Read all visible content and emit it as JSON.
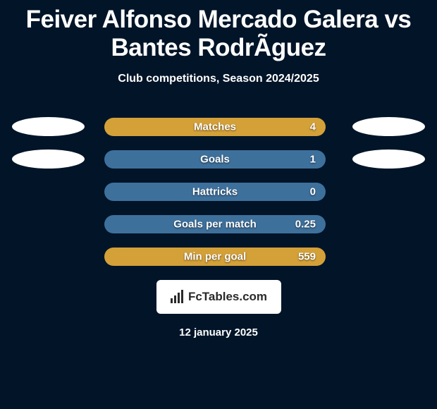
{
  "title": "Feiver Alfonso Mercado Galera vs Bantes RodrÃ­guez",
  "title_fontsize": 35,
  "title_color": "#ffffff",
  "subtitle": "Club competitions, Season 2024/2025",
  "subtitle_fontsize": 16,
  "subtitle_color": "#ffffff",
  "background_color": "#011428",
  "ellipse_left_color": "#ffffff",
  "ellipse_right_color": "#ffffff",
  "bar_fill_full": "#d4a038",
  "bar_fill_partial": "#3e709c",
  "bar_label_fontsize": 15,
  "bar_value_fontsize": 15,
  "stats": [
    {
      "label": "Matches",
      "value": "4",
      "show_ellipses": true,
      "full_fill": true
    },
    {
      "label": "Goals",
      "value": "1",
      "show_ellipses": true,
      "full_fill": false
    },
    {
      "label": "Hattricks",
      "value": "0",
      "show_ellipses": false,
      "full_fill": false
    },
    {
      "label": "Goals per match",
      "value": "0.25",
      "show_ellipses": false,
      "full_fill": false
    },
    {
      "label": "Min per goal",
      "value": "559",
      "show_ellipses": false,
      "full_fill": true
    }
  ],
  "logo_text": "FcTables.com",
  "logo_bar_color": "#2a2a2a",
  "date_text": "12 january 2025",
  "date_fontsize": 15
}
